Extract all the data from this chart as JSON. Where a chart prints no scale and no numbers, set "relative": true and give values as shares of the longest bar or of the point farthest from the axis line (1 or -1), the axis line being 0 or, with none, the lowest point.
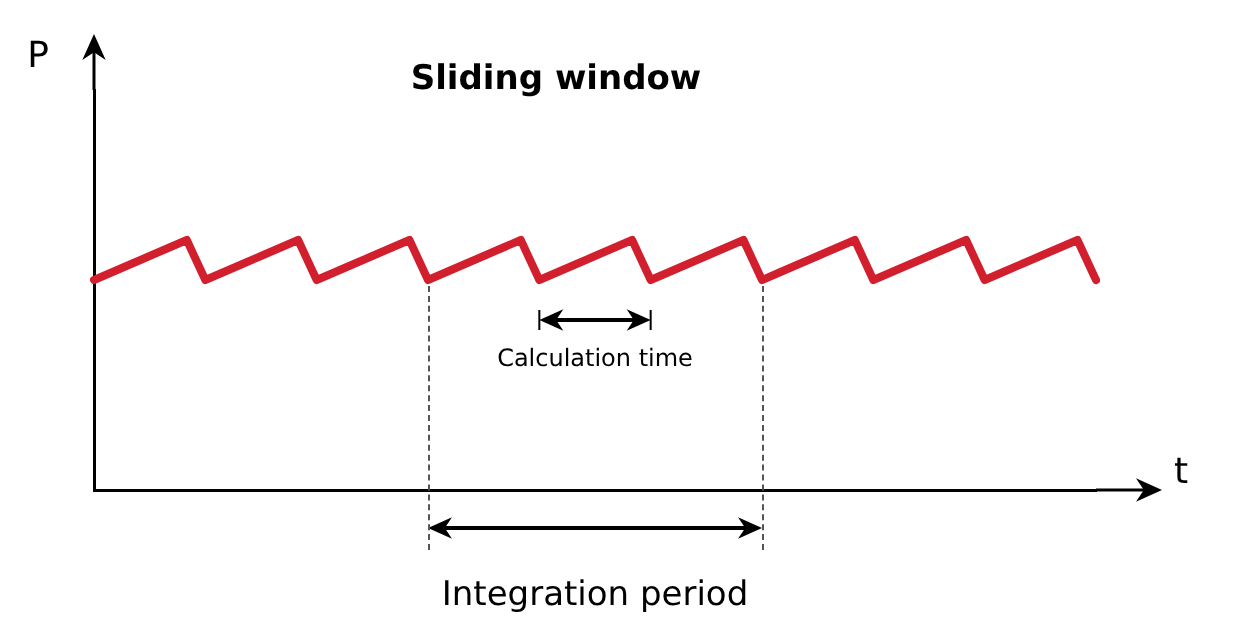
{
  "chart_data": {
    "type": "line",
    "title": "Sliding window",
    "xlabel": "t",
    "ylabel": "P",
    "relative": true,
    "grid": false,
    "legend": false,
    "tick_labels": false,
    "marker": "none",
    "line_style": "solid",
    "categories": [
      null,
      null,
      null,
      null,
      null,
      null,
      null,
      null,
      null,
      null,
      null,
      null,
      null,
      null,
      null,
      null,
      null,
      null,
      null,
      null,
      null,
      null,
      null,
      null,
      null,
      null,
      null,
      null,
      null,
      null,
      null,
      null,
      null,
      null,
      null,
      null,
      null,
      null,
      null,
      null,
      null,
      null,
      null,
      null,
      null,
      null,
      null,
      null,
      null,
      null,
      null,
      null,
      null,
      null,
      null
    ],
    "series": [
      {
        "color": "#d21f2e",
        "values": [
          0.84,
          0.872,
          0.904,
          0.936,
          0.968,
          1,
          0.84,
          0.872,
          0.904,
          0.936,
          0.968,
          1,
          0.84,
          0.872,
          0.904,
          0.936,
          0.968,
          1,
          0.84,
          0.872,
          0.904,
          0.936,
          0.968,
          1,
          0.84,
          0.872,
          0.904,
          0.936,
          0.968,
          1,
          0.84,
          0.872,
          0.904,
          0.936,
          0.968,
          1,
          0.84,
          0.872,
          0.904,
          0.936,
          0.968,
          1,
          0.84,
          0.872,
          0.904,
          0.936,
          0.968,
          1,
          0.84,
          0.872,
          0.904,
          0.936,
          0.968,
          1,
          0.84
        ]
      }
    ],
    "annotations": [
      "Calculation time",
      "Integration period"
    ]
  }
}
